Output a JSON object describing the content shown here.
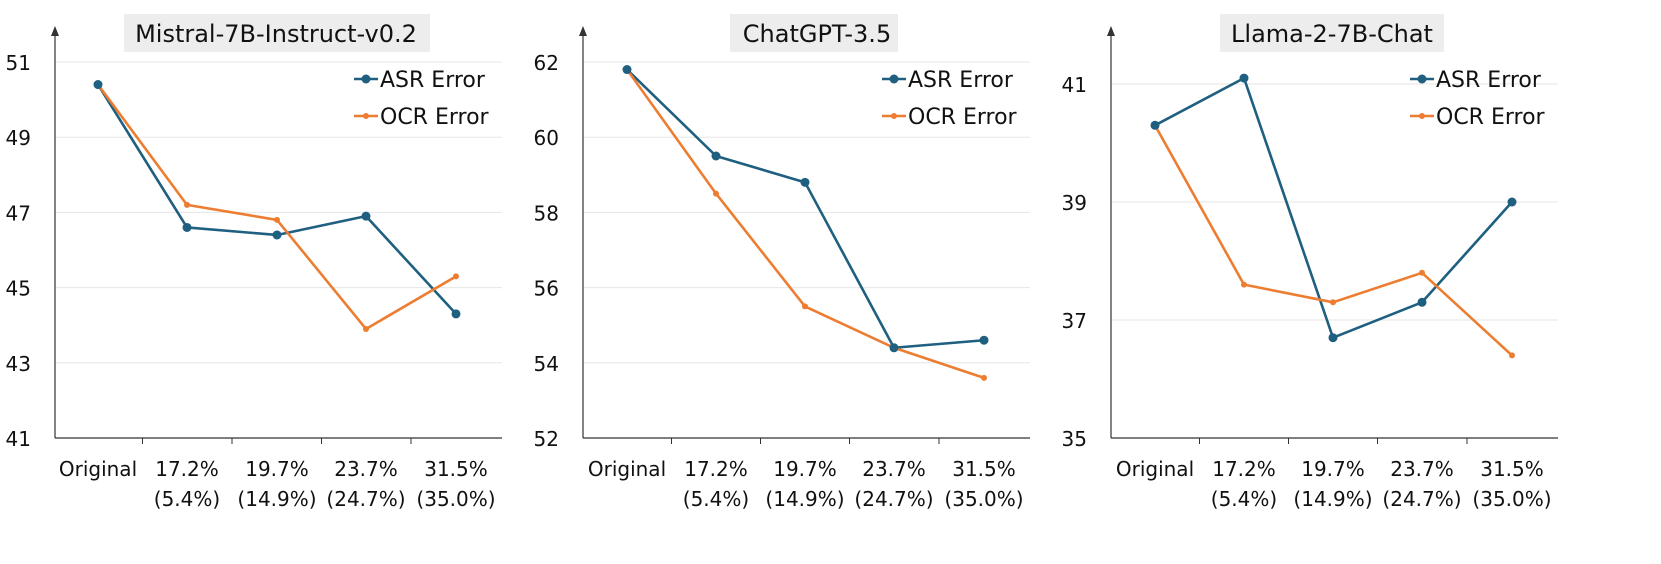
{
  "chart_data": [
    {
      "type": "line",
      "title": "Mistral-7B-Instruct-v0.2",
      "categories": [
        "Original",
        "17.2%\n(5.4%)",
        "19.7%\n(14.9%)",
        "23.7%\n(24.7%)",
        "31.5%\n(35.0%)"
      ],
      "series": [
        {
          "name": "ASR Error",
          "values": [
            50.4,
            46.6,
            46.4,
            46.9,
            44.3
          ]
        },
        {
          "name": "OCR Error",
          "values": [
            50.4,
            47.2,
            46.8,
            43.9,
            45.3
          ]
        }
      ],
      "ylim": [
        41,
        51
      ],
      "yticks": [
        41,
        43,
        45,
        47,
        49,
        51
      ],
      "grid": true,
      "legend": "top-right"
    },
    {
      "type": "line",
      "title": "ChatGPT-3.5",
      "categories": [
        "Original",
        "17.2%\n(5.4%)",
        "19.7%\n(14.9%)",
        "23.7%\n(24.7%)",
        "31.5%\n(35.0%)"
      ],
      "series": [
        {
          "name": "ASR Error",
          "values": [
            61.8,
            59.5,
            58.8,
            54.4,
            54.6
          ]
        },
        {
          "name": "OCR Error",
          "values": [
            61.8,
            58.5,
            55.5,
            54.4,
            53.6
          ]
        }
      ],
      "ylim": [
        52,
        62
      ],
      "yticks": [
        52,
        54,
        56,
        58,
        60,
        62
      ],
      "grid": true,
      "legend": "top-right"
    },
    {
      "type": "line",
      "title": "Llama-2-7B-Chat",
      "categories": [
        "Original",
        "17.2%\n(5.4%)",
        "19.7%\n(14.9%)",
        "23.7%\n(24.7%)",
        "31.5%\n(35.0%)"
      ],
      "series": [
        {
          "name": "ASR Error",
          "values": [
            40.3,
            41.1,
            36.7,
            37.3,
            39.0
          ]
        },
        {
          "name": "OCR Error",
          "values": [
            40.3,
            37.6,
            37.3,
            37.8,
            36.4
          ]
        }
      ],
      "ylim": [
        35,
        41
      ],
      "yticks": [
        35,
        37,
        39,
        41
      ],
      "grid": true,
      "legend": "top-right"
    }
  ],
  "colors": {
    "asr": "#1f5f7f",
    "ocr": "#ed7d31",
    "grid": "#e6e6e6",
    "axis": "#333333"
  }
}
